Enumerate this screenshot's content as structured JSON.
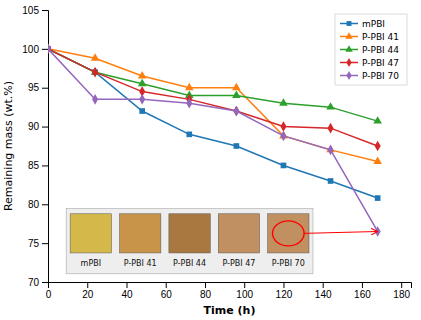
{
  "chart_data": {
    "type": "line",
    "title": "",
    "xlabel": "Time (h)",
    "ylabel": "Remaining mass (wt.%)",
    "xlim": [
      0,
      185
    ],
    "ylim": [
      70,
      105
    ],
    "xticks": [
      0,
      20,
      40,
      60,
      80,
      100,
      120,
      140,
      160,
      180
    ],
    "yticks": [
      70,
      75,
      80,
      85,
      90,
      95,
      100,
      105
    ],
    "grid": false,
    "legend": "upper right",
    "x": [
      0,
      24,
      48,
      72,
      96,
      120,
      144,
      168
    ],
    "series": [
      {
        "name": "mPBI",
        "marker": "square",
        "values": [
          100,
          97.0,
          92.0,
          89.0,
          87.5,
          85.0,
          83.0,
          80.8
        ]
      },
      {
        "name": "P-PBI 41",
        "marker": "triangle",
        "values": [
          100,
          98.8,
          96.5,
          95.0,
          95.0,
          88.8,
          87.0,
          85.5
        ]
      },
      {
        "name": "P-PBI 44",
        "marker": "triangle",
        "values": [
          100,
          97.0,
          95.5,
          94.0,
          94.0,
          93.0,
          92.5,
          90.7
        ]
      },
      {
        "name": "P-PBI 47",
        "marker": "diamond",
        "values": [
          100,
          97.0,
          94.5,
          93.5,
          92.0,
          90.0,
          89.8,
          87.5
        ]
      },
      {
        "name": "P-PBI 70",
        "marker": "diamond",
        "values": [
          100,
          93.5,
          93.5,
          93.0,
          92.0,
          88.8,
          87.0,
          76.5
        ]
      }
    ],
    "annotations": [
      {
        "text": "mPBI",
        "color": "#D4B84A"
      },
      {
        "text": "P-PBI 41",
        "color": "#C8944A"
      },
      {
        "text": "P-PBI 44",
        "color": "#A87840"
      },
      {
        "text": "P-PBI 47",
        "color": "#C09060"
      },
      {
        "text": "P-PBI 70",
        "color": "#C09060",
        "x": 168,
        "y": 76.5
      }
    ]
  }
}
